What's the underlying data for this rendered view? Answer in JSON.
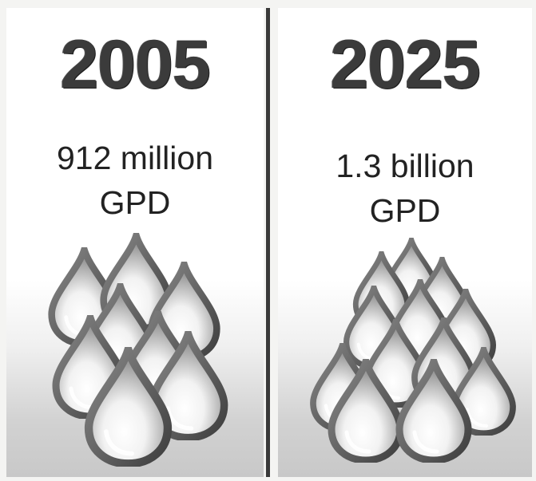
{
  "panels": [
    {
      "year": "2005",
      "amount": "912 million",
      "unit": "GPD"
    },
    {
      "year": "2025",
      "amount": "1.3 billion",
      "unit": "GPD"
    }
  ],
  "colors": {
    "year_text": "#3b3b3b",
    "body_text": "#222222",
    "divider": "#3a3a3a",
    "drop_outline": "#5a5a5a"
  },
  "icons": [
    "water-drop-icon"
  ]
}
